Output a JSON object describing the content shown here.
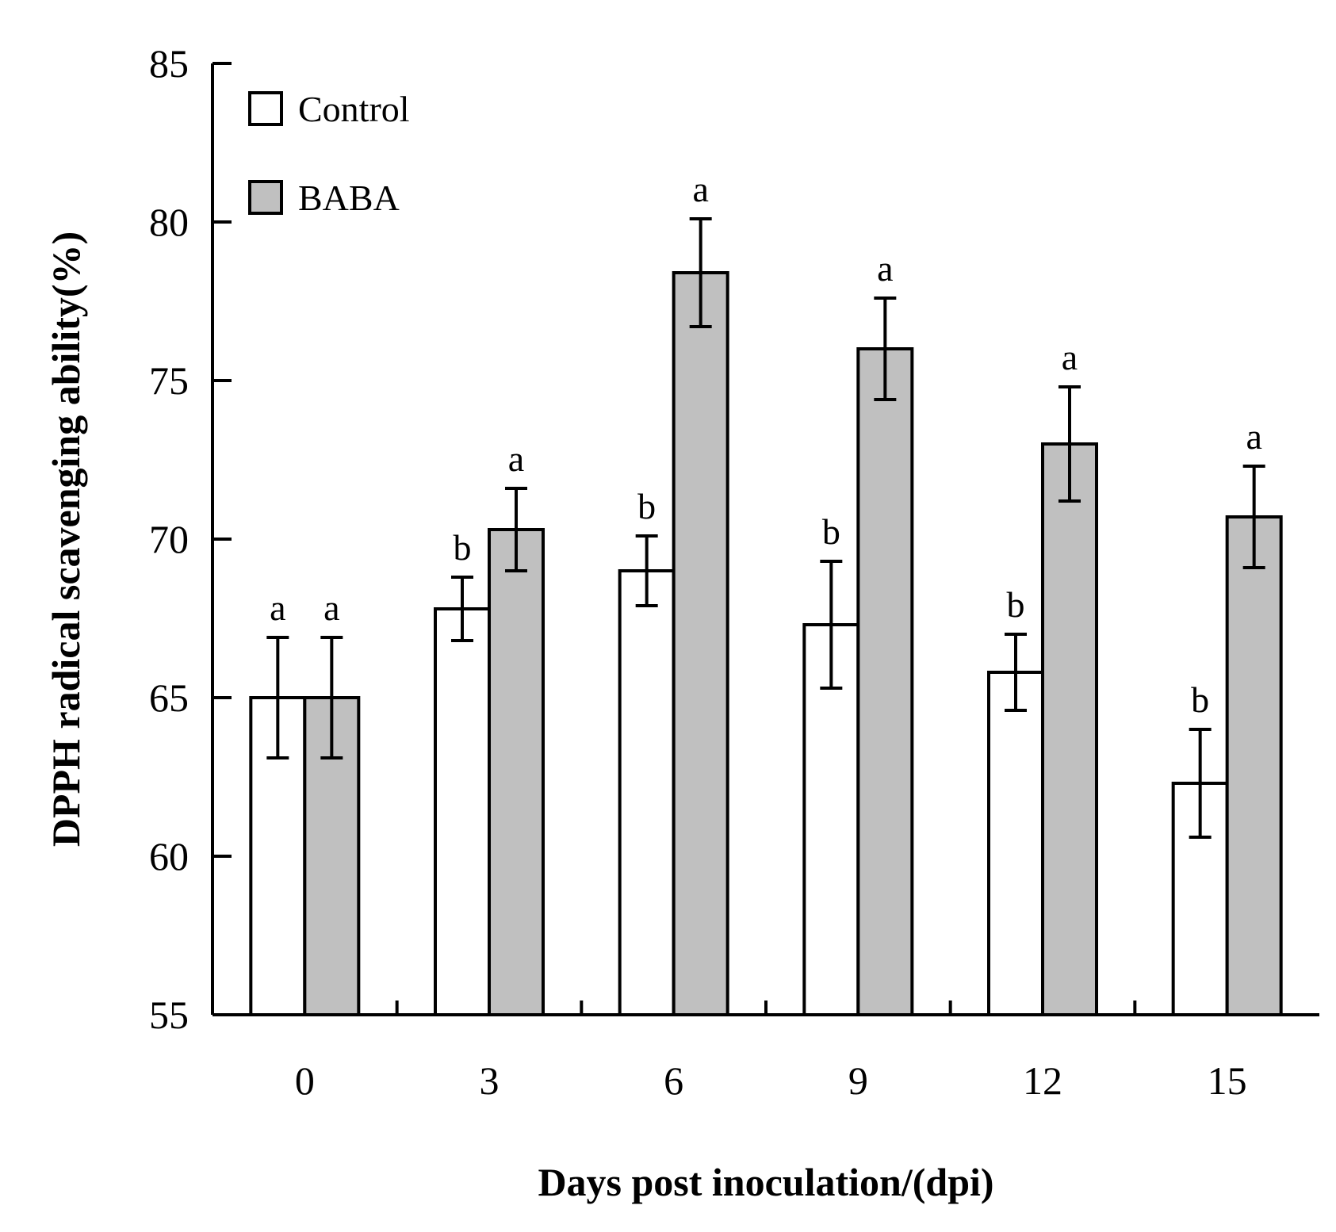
{
  "chart_data": {
    "type": "bar",
    "title": "",
    "xlabel": "Days post inoculation/(dpi)",
    "ylabel": "DPPH radical scavenging ability(%)",
    "categories": [
      "0",
      "3",
      "6",
      "9",
      "12",
      "15"
    ],
    "ylim": [
      55,
      85
    ],
    "yticks": [
      55,
      60,
      65,
      70,
      75,
      80,
      85
    ],
    "grid": false,
    "legend_position": "top-left",
    "series": [
      {
        "name": "Control",
        "color": "#ffffff",
        "values": [
          65.0,
          67.8,
          69.0,
          67.3,
          65.8,
          62.3
        ],
        "errors": [
          1.9,
          1.0,
          1.1,
          2.0,
          1.2,
          1.7
        ],
        "labels": [
          "a",
          "b",
          "b",
          "b",
          "b",
          "b"
        ]
      },
      {
        "name": "BABA",
        "color": "#c0c0c0",
        "values": [
          65.0,
          70.3,
          78.4,
          76.0,
          73.0,
          70.7
        ],
        "errors": [
          1.9,
          1.3,
          1.7,
          1.6,
          1.8,
          1.6
        ],
        "labels": [
          "a",
          "a",
          "a",
          "a",
          "a",
          "a"
        ]
      }
    ]
  }
}
